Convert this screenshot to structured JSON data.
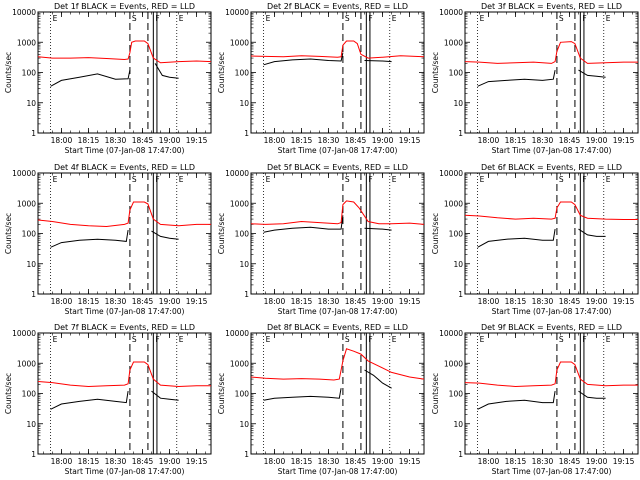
{
  "figure": {
    "ylabel": "Counts/sec",
    "xlabel": "Start Time (07-Jan-08 17:47:00)",
    "y_ticks": [
      "1",
      "10",
      "100",
      "1000",
      "10000"
    ],
    "x_ticks": [
      "18:00",
      "18:15",
      "18:30",
      "18:45",
      "19:00",
      "19:15"
    ],
    "marker_labels": [
      "E",
      "S",
      "F",
      "E"
    ],
    "colors": {
      "events": "#000000",
      "lld": "#ff0000"
    }
  },
  "chart_data": [
    {
      "type": "line",
      "title": "Det 1f BLACK = Events, RED = LLD",
      "xlabel": "Start Time (07-Jan-08 17:47:00)",
      "ylabel": "Counts/sec",
      "log_y": true,
      "ylim": [
        1,
        10000
      ],
      "xlim": [
        "17:47",
        "19:23"
      ],
      "markers": {
        "dashed": [
          "18:38",
          "18:48"
        ],
        "solid": [
          "18:51",
          "18:53"
        ],
        "dotted": [
          "17:54",
          "19:04"
        ]
      },
      "series": [
        {
          "name": "BLACK = Events",
          "color": "#000000",
          "x": [
            "17:54",
            "18:00",
            "18:10",
            "18:20",
            "18:30",
            "18:37",
            "18:38",
            "18:40",
            "18:43",
            "18:47",
            "18:52",
            "18:56",
            "19:00",
            "19:05"
          ],
          "values": [
            35,
            55,
            70,
            90,
            60,
            62,
            120,
            null,
            null,
            null,
            200,
            80,
            70,
            65
          ]
        },
        {
          "name": "RED = LLD",
          "color": "#ff0000",
          "x": [
            "17:47",
            "17:55",
            "18:05",
            "18:15",
            "18:25",
            "18:35",
            "18:37",
            "18:38",
            "18:39",
            "18:41",
            "18:46",
            "18:48",
            "18:51",
            "18:55",
            "19:05",
            "19:15",
            "19:23"
          ],
          "values": [
            330,
            300,
            300,
            310,
            290,
            270,
            280,
            450,
            1000,
            1100,
            1100,
            900,
            300,
            210,
            230,
            240,
            230
          ]
        }
      ]
    },
    {
      "type": "line",
      "title": "Det 2f BLACK = Events, RED = LLD",
      "xlabel": "Start Time (07-Jan-08 17:47:00)",
      "ylabel": "Counts/sec",
      "log_y": true,
      "ylim": [
        1,
        10000
      ],
      "xlim": [
        "17:47",
        "19:23"
      ],
      "markers": {
        "dashed": [
          "18:38",
          "18:48"
        ],
        "solid": [
          "18:51",
          "18:53"
        ],
        "dotted": [
          "17:54",
          "19:04"
        ]
      },
      "series": [
        {
          "name": "BLACK = Events",
          "color": "#000000",
          "x": [
            "17:54",
            "18:00",
            "18:10",
            "18:20",
            "18:30",
            "18:37",
            "18:38",
            "18:44",
            "18:50",
            "19:00",
            "19:05"
          ],
          "values": [
            180,
            230,
            260,
            280,
            250,
            240,
            450,
            null,
            250,
            240,
            230
          ]
        },
        {
          "name": "RED = LLD",
          "color": "#ff0000",
          "x": [
            "17:47",
            "17:55",
            "18:05",
            "18:15",
            "18:25",
            "18:35",
            "18:37",
            "18:38",
            "18:40",
            "18:44",
            "18:46",
            "18:48",
            "18:52",
            "19:00",
            "19:10",
            "19:23"
          ],
          "values": [
            350,
            340,
            330,
            360,
            340,
            320,
            330,
            800,
            1100,
            1100,
            900,
            400,
            300,
            320,
            360,
            330
          ]
        }
      ]
    },
    {
      "type": "line",
      "title": "Det 3f BLACK = Events, RED = LLD",
      "xlabel": "Start Time (07-Jan-08 17:47:00)",
      "ylabel": "Counts/sec",
      "log_y": true,
      "ylim": [
        1,
        10000
      ],
      "xlim": [
        "17:47",
        "19:23"
      ],
      "markers": {
        "dashed": [
          "18:38",
          "18:48"
        ],
        "solid": [
          "18:51",
          "18:53"
        ],
        "dotted": [
          "17:54",
          "19:04"
        ]
      },
      "series": [
        {
          "name": "BLACK = Events",
          "color": "#000000",
          "x": [
            "17:54",
            "18:00",
            "18:10",
            "18:20",
            "18:30",
            "18:36",
            "18:37",
            "18:40",
            "18:47",
            "18:50",
            "18:55",
            "19:00",
            "19:05"
          ],
          "values": [
            35,
            50,
            55,
            60,
            55,
            60,
            120,
            null,
            null,
            120,
            80,
            75,
            70
          ]
        },
        {
          "name": "RED = LLD",
          "color": "#ff0000",
          "x": [
            "17:47",
            "17:55",
            "18:05",
            "18:15",
            "18:25",
            "18:35",
            "18:37",
            "18:38",
            "18:40",
            "18:46",
            "18:48",
            "18:51",
            "18:55",
            "19:05",
            "19:15",
            "19:23"
          ],
          "values": [
            230,
            220,
            200,
            210,
            220,
            200,
            230,
            500,
            1000,
            1050,
            900,
            300,
            200,
            210,
            220,
            220
          ]
        }
      ]
    },
    {
      "type": "line",
      "title": "Det 4f BLACK = Events, RED = LLD",
      "xlabel": "Start Time (07-Jan-08 17:47:00)",
      "ylabel": "Counts/sec",
      "log_y": true,
      "ylim": [
        1,
        10000
      ],
      "xlim": [
        "17:47",
        "19:23"
      ],
      "markers": {
        "dashed": [
          "18:38",
          "18:48"
        ],
        "solid": [
          "18:51",
          "18:53"
        ],
        "dotted": [
          "17:54",
          "19:04"
        ]
      },
      "series": [
        {
          "name": "BLACK = Events",
          "color": "#000000",
          "x": [
            "17:54",
            "18:00",
            "18:10",
            "18:20",
            "18:30",
            "18:36",
            "18:37",
            "18:40",
            "18:47",
            "18:50",
            "18:55",
            "19:00",
            "19:05"
          ],
          "values": [
            35,
            50,
            60,
            65,
            60,
            55,
            130,
            null,
            null,
            120,
            80,
            70,
            65
          ]
        },
        {
          "name": "RED = LLD",
          "color": "#ff0000",
          "x": [
            "17:47",
            "17:55",
            "18:05",
            "18:15",
            "18:25",
            "18:35",
            "18:37",
            "18:38",
            "18:40",
            "18:46",
            "18:48",
            "18:51",
            "18:55",
            "19:05",
            "19:15",
            "19:23"
          ],
          "values": [
            280,
            250,
            200,
            180,
            170,
            200,
            220,
            600,
            1100,
            1100,
            950,
            300,
            200,
            180,
            200,
            200
          ]
        }
      ]
    },
    {
      "type": "line",
      "title": "Det 5f BLACK = Events, RED = LLD",
      "xlabel": "Start Time (07-Jan-08 17:47:00)",
      "ylabel": "Counts/sec",
      "log_y": true,
      "ylim": [
        1,
        10000
      ],
      "xlim": [
        "17:47",
        "19:23"
      ],
      "markers": {
        "dashed": [
          "18:38",
          "18:48"
        ],
        "solid": [
          "18:51",
          "18:53"
        ],
        "dotted": [
          "17:54",
          "19:04"
        ]
      },
      "series": [
        {
          "name": "BLACK = Events",
          "color": "#000000",
          "x": [
            "17:54",
            "18:00",
            "18:10",
            "18:20",
            "18:30",
            "18:37",
            "18:38",
            "18:44",
            "18:50",
            "19:00",
            "19:05"
          ],
          "values": [
            110,
            130,
            150,
            160,
            140,
            140,
            400,
            null,
            150,
            140,
            130
          ]
        },
        {
          "name": "RED = LLD",
          "color": "#ff0000",
          "x": [
            "17:47",
            "17:55",
            "18:05",
            "18:15",
            "18:25",
            "18:35",
            "18:37",
            "18:38",
            "18:40",
            "18:44",
            "18:47",
            "18:52",
            "18:58",
            "19:05",
            "19:15",
            "19:23"
          ],
          "values": [
            210,
            200,
            210,
            250,
            230,
            210,
            230,
            900,
            1200,
            1100,
            700,
            250,
            210,
            210,
            220,
            200
          ]
        }
      ]
    },
    {
      "type": "line",
      "title": "Det 6f BLACK = Events, RED = LLD",
      "xlabel": "Start Time (07-Jan-08 17:47:00)",
      "ylabel": "Counts/sec",
      "log_y": true,
      "ylim": [
        1,
        10000
      ],
      "xlim": [
        "17:47",
        "19:23"
      ],
      "markers": {
        "dashed": [
          "18:38",
          "18:48"
        ],
        "solid": [
          "18:51",
          "18:53"
        ],
        "dotted": [
          "17:54",
          "19:04"
        ]
      },
      "series": [
        {
          "name": "BLACK = Events",
          "color": "#000000",
          "x": [
            "17:54",
            "18:00",
            "18:10",
            "18:20",
            "18:30",
            "18:36",
            "18:37",
            "18:40",
            "18:47",
            "18:50",
            "18:55",
            "19:00",
            "19:05"
          ],
          "values": [
            35,
            55,
            65,
            70,
            60,
            60,
            140,
            null,
            null,
            140,
            90,
            80,
            80
          ]
        },
        {
          "name": "RED = LLD",
          "color": "#ff0000",
          "x": [
            "17:47",
            "17:55",
            "18:05",
            "18:15",
            "18:25",
            "18:35",
            "18:37",
            "18:38",
            "18:40",
            "18:46",
            "18:48",
            "18:51",
            "18:55",
            "19:05",
            "19:15",
            "19:23"
          ],
          "values": [
            400,
            380,
            330,
            300,
            320,
            300,
            320,
            700,
            1100,
            1100,
            900,
            400,
            320,
            300,
            290,
            290
          ]
        }
      ]
    },
    {
      "type": "line",
      "title": "Det 7f BLACK = Events, RED = LLD",
      "xlabel": "Start Time (07-Jan-08 17:47:00)",
      "ylabel": "Counts/sec",
      "log_y": true,
      "ylim": [
        1,
        10000
      ],
      "xlim": [
        "17:47",
        "19:23"
      ],
      "markers": {
        "dashed": [
          "18:38",
          "18:48"
        ],
        "solid": [
          "18:51",
          "18:53"
        ],
        "dotted": [
          "17:54",
          "19:04"
        ]
      },
      "series": [
        {
          "name": "BLACK = Events",
          "color": "#000000",
          "x": [
            "17:54",
            "18:00",
            "18:10",
            "18:20",
            "18:30",
            "18:36",
            "18:37",
            "18:40",
            "18:47",
            "18:50",
            "18:55",
            "19:00",
            "19:05"
          ],
          "values": [
            30,
            45,
            55,
            65,
            55,
            50,
            120,
            null,
            null,
            120,
            70,
            65,
            60
          ]
        },
        {
          "name": "RED = LLD",
          "color": "#ff0000",
          "x": [
            "17:47",
            "17:55",
            "18:05",
            "18:15",
            "18:25",
            "18:35",
            "18:37",
            "18:38",
            "18:40",
            "18:46",
            "18:48",
            "18:51",
            "18:55",
            "19:05",
            "19:15",
            "19:23"
          ],
          "values": [
            250,
            230,
            190,
            170,
            180,
            190,
            210,
            600,
            1100,
            1100,
            900,
            300,
            190,
            170,
            180,
            180
          ]
        }
      ]
    },
    {
      "type": "line",
      "title": "Det 8f BLACK = Events, RED = LLD",
      "xlabel": "Start Time (07-Jan-08 17:47:00)",
      "ylabel": "Counts/sec",
      "log_y": true,
      "ylim": [
        1,
        10000
      ],
      "xlim": [
        "17:47",
        "19:23"
      ],
      "markers": {
        "dashed": [
          "18:38",
          "18:48"
        ],
        "solid": [
          "18:51",
          "18:53"
        ],
        "dotted": [
          "17:54",
          "19:04"
        ]
      },
      "series": [
        {
          "name": "BLACK = Events",
          "color": "#000000",
          "x": [
            "17:54",
            "18:00",
            "18:10",
            "18:20",
            "18:30",
            "18:36",
            "18:37",
            "18:45",
            "18:50",
            "18:55",
            "19:00",
            "19:05"
          ],
          "values": [
            60,
            70,
            75,
            80,
            75,
            70,
            150,
            null,
            600,
            400,
            220,
            150
          ]
        },
        {
          "name": "RED = LLD",
          "color": "#ff0000",
          "x": [
            "17:47",
            "17:55",
            "18:05",
            "18:15",
            "18:25",
            "18:33",
            "18:36",
            "18:38",
            "18:40",
            "18:44",
            "18:48",
            "18:52",
            "18:58",
            "19:05",
            "19:15",
            "19:23"
          ],
          "values": [
            350,
            320,
            300,
            310,
            300,
            280,
            300,
            1200,
            3000,
            2500,
            2000,
            1200,
            800,
            500,
            350,
            300
          ]
        }
      ]
    },
    {
      "type": "line",
      "title": "Det 9f BLACK = Events, RED = LLD",
      "xlabel": "Start Time (07-Jan-08 17:47:00)",
      "ylabel": "Counts/sec",
      "log_y": true,
      "ylim": [
        1,
        10000
      ],
      "xlim": [
        "17:47",
        "19:23"
      ],
      "markers": {
        "dashed": [
          "18:38",
          "18:48"
        ],
        "solid": [
          "18:51",
          "18:53"
        ],
        "dotted": [
          "17:54",
          "19:04"
        ]
      },
      "series": [
        {
          "name": "BLACK = Events",
          "color": "#000000",
          "x": [
            "17:54",
            "18:00",
            "18:10",
            "18:20",
            "18:30",
            "18:36",
            "18:37",
            "18:40",
            "18:47",
            "18:50",
            "18:55",
            "19:00",
            "19:05"
          ],
          "values": [
            30,
            45,
            55,
            60,
            50,
            50,
            120,
            null,
            null,
            120,
            75,
            70,
            70
          ]
        },
        {
          "name": "RED = LLD",
          "color": "#ff0000",
          "x": [
            "17:47",
            "17:55",
            "18:05",
            "18:15",
            "18:25",
            "18:35",
            "18:37",
            "18:38",
            "18:40",
            "18:46",
            "18:48",
            "18:51",
            "18:55",
            "19:05",
            "19:15",
            "19:23"
          ],
          "values": [
            230,
            220,
            190,
            170,
            180,
            190,
            210,
            600,
            1100,
            1100,
            900,
            300,
            200,
            180,
            190,
            190
          ]
        }
      ]
    }
  ]
}
